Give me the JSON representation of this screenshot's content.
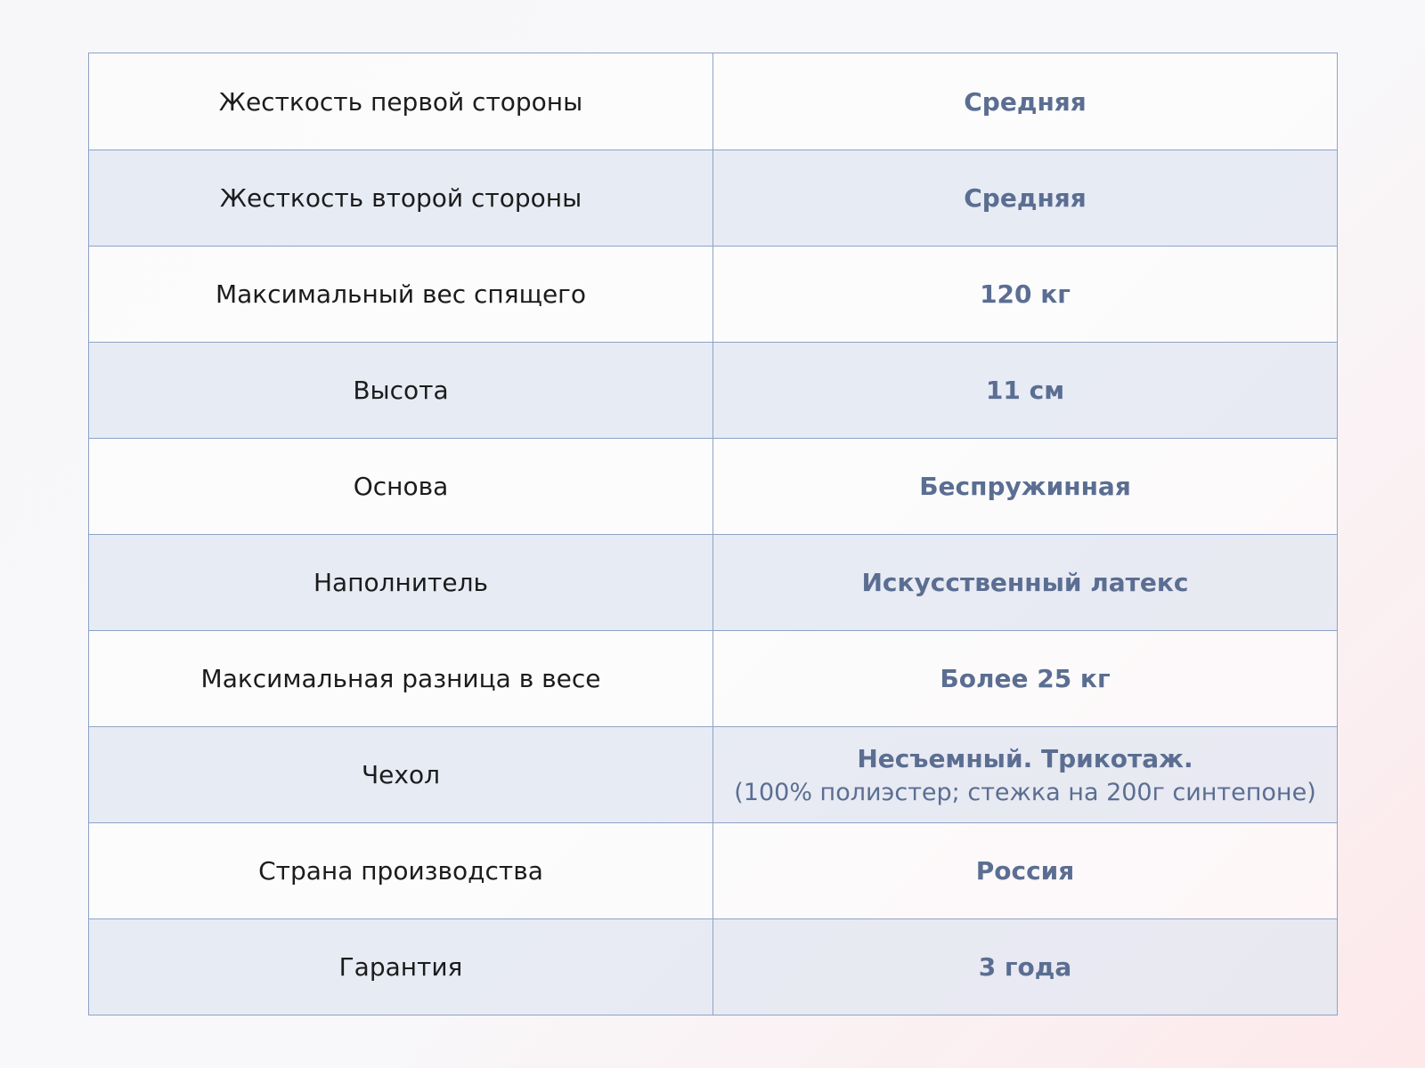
{
  "colors": {
    "border": "#8fa3c6",
    "value_text": "#5b6e92",
    "alt_row": "#e2e7f2"
  },
  "rows": [
    {
      "label": "Жесткость первой стороны",
      "value": "Средняя"
    },
    {
      "label": "Жесткость второй стороны",
      "value": "Средняя"
    },
    {
      "label": "Максимальный вес спящего",
      "value": "120 кг"
    },
    {
      "label": "Высота",
      "value": "11 см"
    },
    {
      "label": "Основа",
      "value": "Беспружинная"
    },
    {
      "label": "Наполнитель",
      "value": "Искусственный латекс"
    },
    {
      "label": "Максимальная разница в весе",
      "value": "Более 25 кг"
    },
    {
      "label": "Чехол",
      "value": "Несъемный. Трикотаж.",
      "value_note": "(100% полиэстер; стежка на 200г синтепоне)"
    },
    {
      "label": "Страна производства",
      "value": "Россия"
    },
    {
      "label": "Гарантия",
      "value": "3 года"
    }
  ]
}
